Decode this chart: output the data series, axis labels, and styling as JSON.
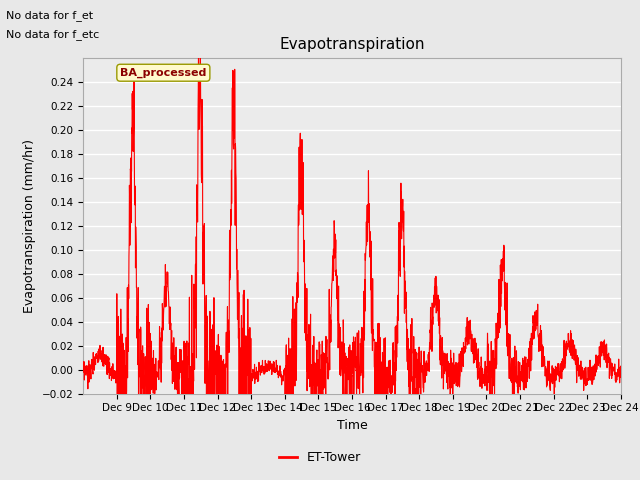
{
  "title": "Evapotranspiration",
  "ylabel": "Evapotranspiration (mm/hr)",
  "xlabel": "Time",
  "xlim_start": 8,
  "xlim_end": 24,
  "ylim": [
    -0.02,
    0.26
  ],
  "yticks": [
    -0.02,
    0.0,
    0.02,
    0.04,
    0.06,
    0.08,
    0.1,
    0.12,
    0.14,
    0.16,
    0.18,
    0.2,
    0.22,
    0.24
  ],
  "xtick_positions": [
    9,
    10,
    11,
    12,
    13,
    14,
    15,
    16,
    17,
    18,
    19,
    20,
    21,
    22,
    23,
    24
  ],
  "xtick_labels": [
    "Dec 9",
    "Dec 10",
    "Dec 11",
    "Dec 12",
    "Dec 13",
    "Dec 14",
    "Dec 15",
    "Dec 16",
    "Dec 17",
    "Dec 18",
    "Dec 19",
    "Dec 20",
    "Dec 21",
    "Dec 22",
    "Dec 23",
    "Dec 24"
  ],
  "line_color": "#FF0000",
  "line_width": 0.8,
  "fig_bg_color": "#E8E8E8",
  "plot_bg_color": "#EBEBEB",
  "legend_label": "ET-Tower",
  "top_left_text1": "No data for f_et",
  "top_left_text2": "No data for f_etc",
  "annotation_text": "BA_processed",
  "grid_color": "#FFFFFF",
  "title_fontsize": 11,
  "label_fontsize": 9,
  "tick_fontsize": 7.5,
  "legend_fontsize": 9
}
